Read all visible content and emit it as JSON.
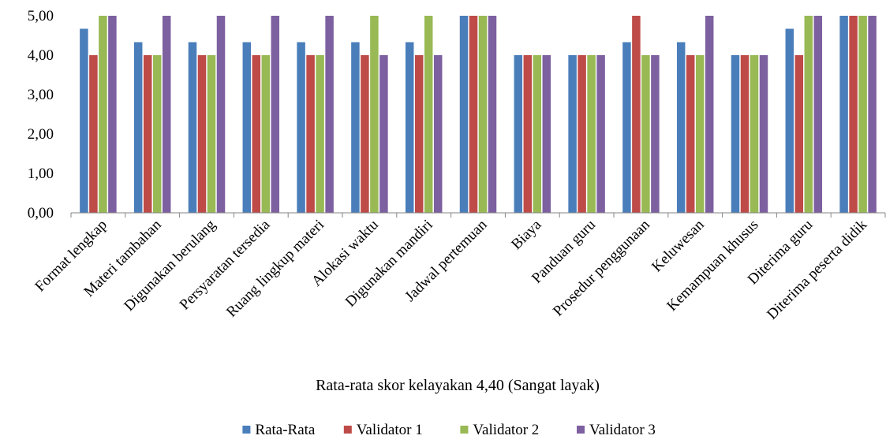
{
  "chart_data": {
    "type": "bar",
    "title": "",
    "xlabel": "Rata-rata skor kelayakan 4,40 (Sangat layak)",
    "ylabel": "",
    "ylim": [
      0,
      5
    ],
    "yticks": [
      "0,00",
      "1,00",
      "2,00",
      "3,00",
      "4,00",
      "5,00"
    ],
    "grid": false,
    "legend_position": "bottom",
    "categories": [
      "Format lengkap",
      "Materi tambahan",
      "Digunakan berulang",
      "Persyaratan tersedia",
      "Ruang lingkup materi",
      "Alokasi waktu",
      "Digunakan mandiri",
      "Jadwal pertemuan",
      "Biaya",
      "Panduan guru",
      "Prosedur penggunaan",
      "Keluwesan",
      "Kemampuan khusus",
      "Diterima guru",
      "Diterima peserta didik"
    ],
    "series": [
      {
        "name": "Rata-Rata",
        "color": "#4a7ebb",
        "values": [
          4.67,
          4.33,
          4.33,
          4.33,
          4.33,
          4.33,
          4.33,
          5.0,
          4.0,
          4.0,
          4.33,
          4.33,
          4.0,
          4.67,
          5.0
        ]
      },
      {
        "name": "Validator 1",
        "color": "#be4b48",
        "values": [
          4,
          4,
          4,
          4,
          4,
          4,
          4,
          5,
          4,
          4,
          5,
          4,
          4,
          4,
          5
        ]
      },
      {
        "name": "Validator 2",
        "color": "#98b954",
        "values": [
          5,
          4,
          4,
          4,
          4,
          5,
          5,
          5,
          4,
          4,
          4,
          4,
          4,
          5,
          5
        ]
      },
      {
        "name": "Validator 3",
        "color": "#7d60a0",
        "values": [
          5,
          5,
          5,
          5,
          5,
          4,
          4,
          5,
          4,
          4,
          4,
          5,
          4,
          5,
          5
        ]
      }
    ]
  }
}
